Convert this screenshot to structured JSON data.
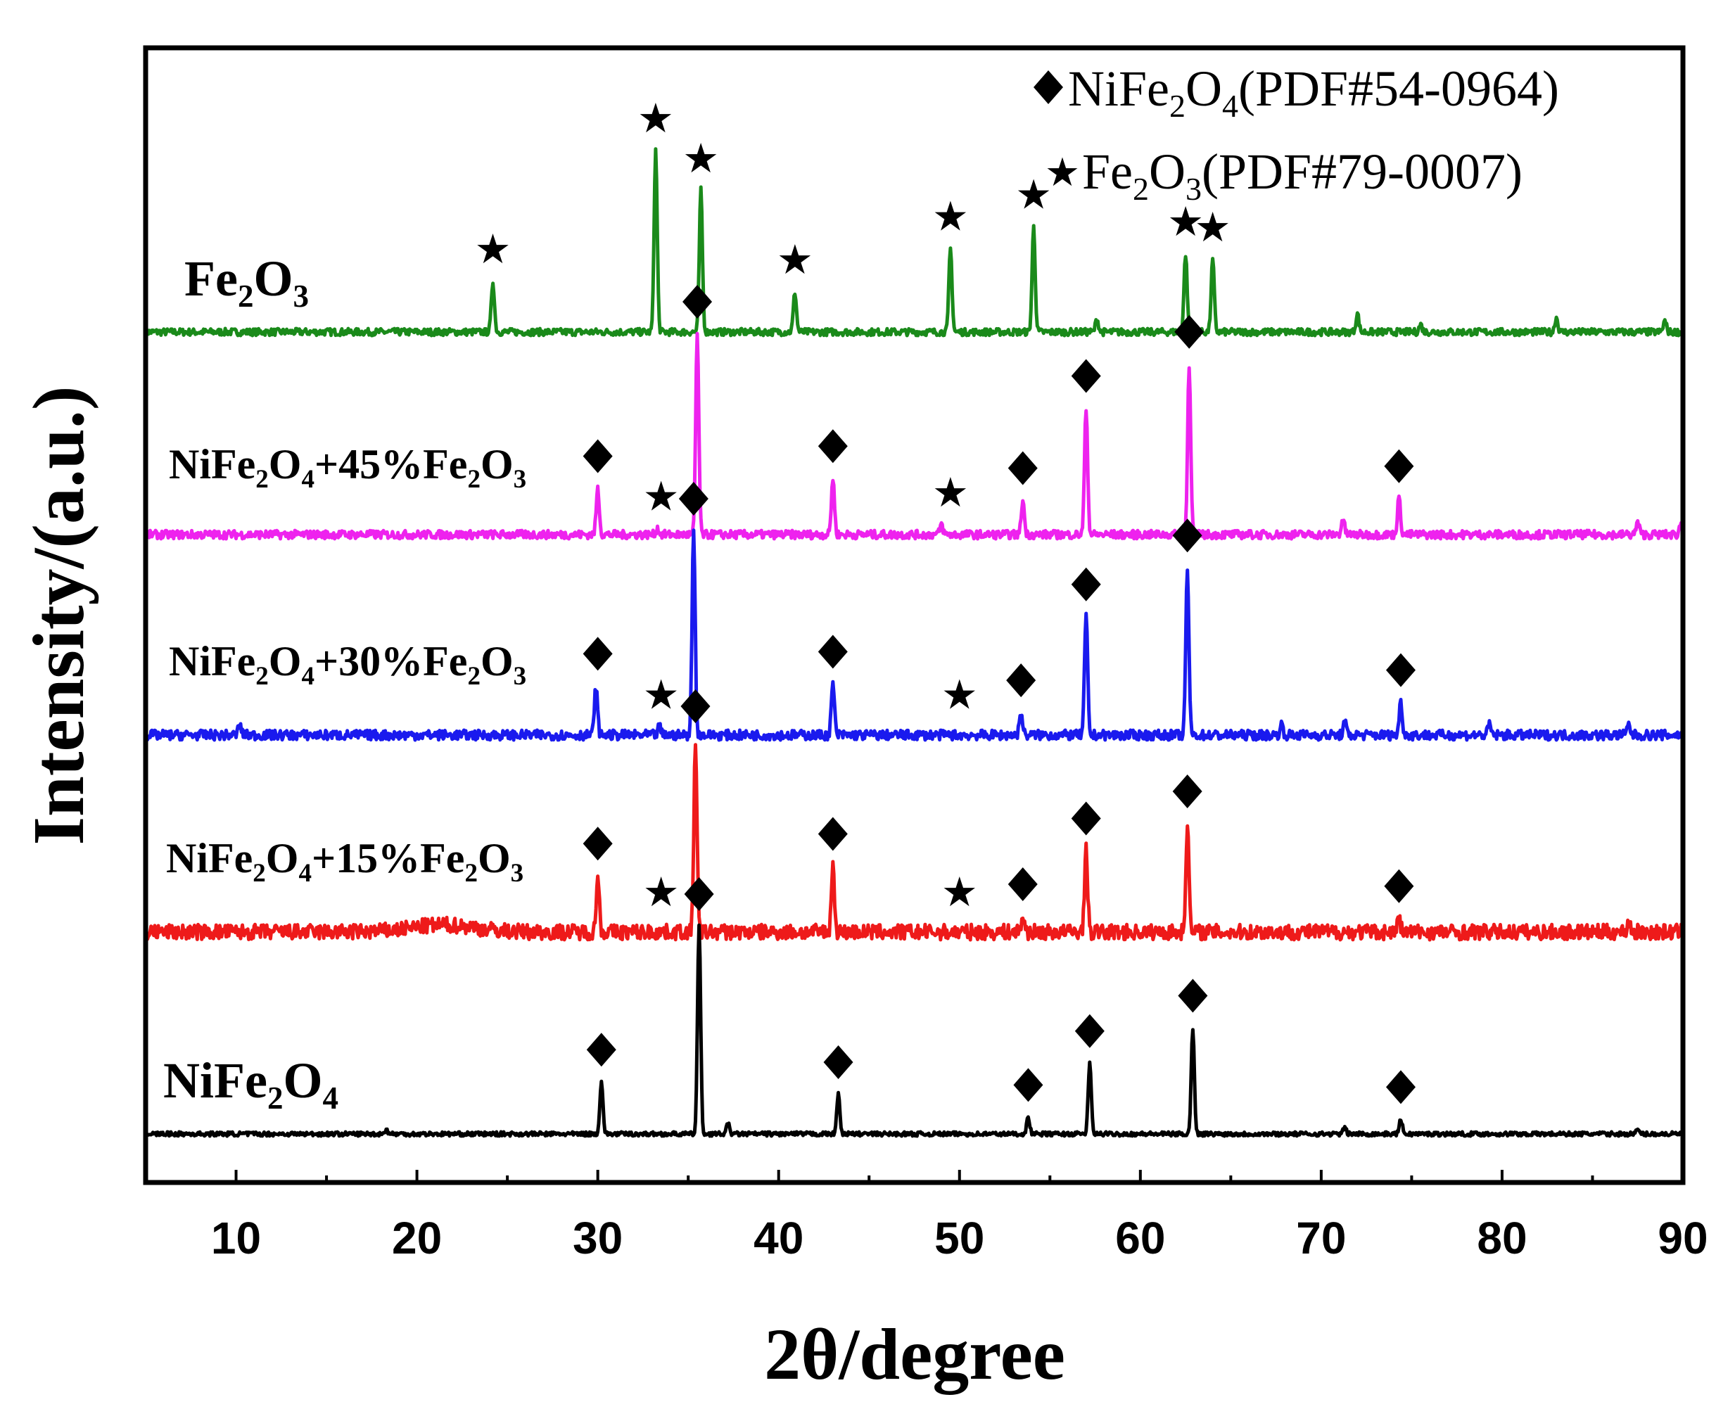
{
  "chart_data": {
    "type": "line",
    "xlabel": "2θ/degree",
    "ylabel": "Intensity/(a.u.)",
    "xlim": [
      5,
      90
    ],
    "xticks": [
      "10",
      "20",
      "30",
      "40",
      "50",
      "60",
      "70",
      "80",
      "90"
    ],
    "grid": false,
    "legend": {
      "placement": "top-right",
      "entries": [
        {
          "symbol": "diamond",
          "parts": [
            [
              "NiFe",
              "n"
            ],
            [
              "2",
              "s"
            ],
            [
              "O",
              "n"
            ],
            [
              "4",
              "s"
            ],
            [
              "(PDF#54-0964)",
              "n"
            ]
          ]
        },
        {
          "symbol": "star",
          "parts": [
            [
              "Fe",
              "n"
            ],
            [
              "2",
              "s"
            ],
            [
              "O",
              "n"
            ],
            [
              "3",
              "s"
            ],
            [
              "(PDF#79-0007)",
              "n"
            ]
          ]
        }
      ]
    },
    "series": [
      {
        "name": "Fe2O3",
        "label_parts": [
          [
            "Fe",
            "n"
          ],
          [
            "2",
            "s"
          ],
          [
            "O",
            "n"
          ],
          [
            "3",
            "s"
          ]
        ],
        "color": "#1a8a1a",
        "peaks": [
          [
            24.2,
            0.28
          ],
          [
            33.2,
            1.0
          ],
          [
            35.7,
            0.78
          ],
          [
            40.9,
            0.22
          ],
          [
            49.5,
            0.46
          ],
          [
            54.1,
            0.58
          ],
          [
            57.6,
            0.07
          ],
          [
            62.5,
            0.43
          ],
          [
            64.0,
            0.4
          ],
          [
            72.0,
            0.1
          ],
          [
            75.5,
            0.04
          ],
          [
            83.0,
            0.08
          ],
          [
            89.0,
            0.06
          ]
        ],
        "markers": [
          [
            24.2,
            "star"
          ],
          [
            33.2,
            "star"
          ],
          [
            35.7,
            "star"
          ],
          [
            40.9,
            "star"
          ],
          [
            49.5,
            "star"
          ],
          [
            54.1,
            "star"
          ],
          [
            62.5,
            "star"
          ],
          [
            64.0,
            "star"
          ]
        ]
      },
      {
        "name": "NiFe2O4+45%Fe2O3",
        "label_parts": [
          [
            "NiFe",
            "n"
          ],
          [
            "2",
            "s"
          ],
          [
            "O",
            "n"
          ],
          [
            "4",
            "s"
          ],
          [
            "+45%Fe",
            "n"
          ],
          [
            "2",
            "s"
          ],
          [
            "O",
            "n"
          ],
          [
            "3",
            "s"
          ]
        ],
        "color": "#ee22ee",
        "peaks": [
          [
            30.0,
            0.23
          ],
          [
            33.3,
            0.03
          ],
          [
            35.5,
            1.0
          ],
          [
            43.0,
            0.28
          ],
          [
            49.0,
            0.05
          ],
          [
            53.5,
            0.17
          ],
          [
            57.0,
            0.63
          ],
          [
            62.7,
            0.85
          ],
          [
            71.2,
            0.08
          ],
          [
            74.3,
            0.18
          ],
          [
            87.5,
            0.06
          ],
          [
            89.9,
            0.06
          ]
        ],
        "markers": [
          [
            30.0,
            "diamond"
          ],
          [
            33.5,
            "star"
          ],
          [
            35.5,
            "diamond"
          ],
          [
            43.0,
            "diamond"
          ],
          [
            49.5,
            "star"
          ],
          [
            53.5,
            "diamond"
          ],
          [
            57.0,
            "diamond"
          ],
          [
            62.7,
            "diamond"
          ],
          [
            74.3,
            "diamond"
          ]
        ]
      },
      {
        "name": "NiFe2O4+30%Fe2O3",
        "label_parts": [
          [
            "NiFe",
            "n"
          ],
          [
            "2",
            "s"
          ],
          [
            "O",
            "n"
          ],
          [
            "4",
            "s"
          ],
          [
            "+30%Fe",
            "n"
          ],
          [
            "2",
            "s"
          ],
          [
            "O",
            "n"
          ],
          [
            "3",
            "s"
          ]
        ],
        "color": "#1a1aee",
        "peaks": [
          [
            10.2,
            0.05
          ],
          [
            29.9,
            0.24
          ],
          [
            33.4,
            0.04
          ],
          [
            35.3,
            1.0
          ],
          [
            43.0,
            0.25
          ],
          [
            53.4,
            0.11
          ],
          [
            57.0,
            0.58
          ],
          [
            62.6,
            0.82
          ],
          [
            67.8,
            0.05
          ],
          [
            71.3,
            0.06
          ],
          [
            74.4,
            0.16
          ],
          [
            79.3,
            0.05
          ],
          [
            87.0,
            0.05
          ]
        ],
        "markers": [
          [
            30.0,
            "diamond"
          ],
          [
            33.5,
            "star"
          ],
          [
            35.3,
            "diamond"
          ],
          [
            43.0,
            "diamond"
          ],
          [
            50.0,
            "star"
          ],
          [
            53.4,
            "diamond"
          ],
          [
            57.0,
            "diamond"
          ],
          [
            62.6,
            "diamond"
          ],
          [
            74.4,
            "diamond"
          ]
        ]
      },
      {
        "name": "NiFe2O4+15%Fe2O3",
        "label_parts": [
          [
            "NiFe",
            "n"
          ],
          [
            "2",
            "s"
          ],
          [
            "O",
            "n"
          ],
          [
            "4",
            "s"
          ],
          [
            "+15%Fe",
            "n"
          ],
          [
            "2",
            "s"
          ],
          [
            "O",
            "n"
          ],
          [
            "3",
            "s"
          ]
        ],
        "color": "#ee1a1a",
        "peaks": [
          [
            30.0,
            0.29
          ],
          [
            35.4,
            1.0
          ],
          [
            43.0,
            0.34
          ],
          [
            53.5,
            0.08
          ],
          [
            57.0,
            0.42
          ],
          [
            62.6,
            0.56
          ],
          [
            74.3,
            0.07
          ],
          [
            87.0,
            0.06
          ]
        ],
        "markers": [
          [
            30.0,
            "diamond"
          ],
          [
            33.5,
            "star"
          ],
          [
            35.4,
            "diamond"
          ],
          [
            43.0,
            "diamond"
          ],
          [
            50.0,
            "star"
          ],
          [
            53.5,
            "diamond"
          ],
          [
            57.0,
            "diamond"
          ],
          [
            62.6,
            "diamond"
          ],
          [
            74.3,
            "diamond"
          ]
        ]
      },
      {
        "name": "NiFe2O4",
        "label_parts": [
          [
            "NiFe",
            "n"
          ],
          [
            "2",
            "s"
          ],
          [
            "O",
            "n"
          ],
          [
            "4",
            "s"
          ]
        ],
        "color": "#000000",
        "peaks": [
          [
            18.3,
            0.02
          ],
          [
            30.2,
            0.25
          ],
          [
            35.6,
            1.0
          ],
          [
            37.2,
            0.05
          ],
          [
            43.3,
            0.19
          ],
          [
            53.8,
            0.08
          ],
          [
            57.2,
            0.34
          ],
          [
            62.9,
            0.51
          ],
          [
            71.3,
            0.03
          ],
          [
            74.4,
            0.07
          ],
          [
            87.5,
            0.02
          ]
        ],
        "markers": [
          [
            30.2,
            "diamond"
          ],
          [
            35.6,
            "diamond"
          ],
          [
            43.3,
            "diamond"
          ],
          [
            53.8,
            "diamond"
          ],
          [
            57.2,
            "diamond"
          ],
          [
            62.9,
            "diamond"
          ],
          [
            74.4,
            "diamond"
          ]
        ]
      }
    ]
  }
}
